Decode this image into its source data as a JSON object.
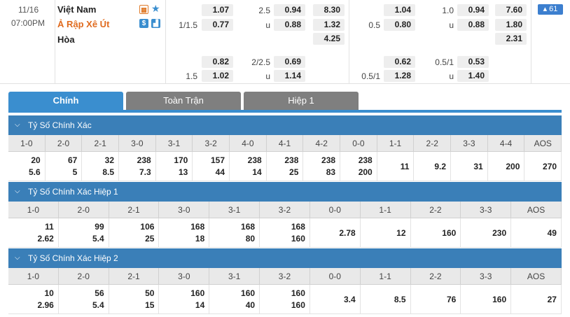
{
  "match": {
    "date": "11/16",
    "time": "07:00PM",
    "home": "Việt Nam",
    "away": "Ả Rập Xê Út",
    "draw": "Hòa"
  },
  "more_badge": "61",
  "odds_full": {
    "r1": {
      "h1": "1.07",
      "hcap_label": "2.5",
      "ou1": "0.94",
      "x1": "8.30"
    },
    "r2": {
      "hcap": "1/1.5",
      "h2": "0.77",
      "u": "u",
      "ou2": "0.88",
      "x2": "1.32"
    },
    "r3": {
      "x3": "4.25"
    },
    "r4": {
      "h4": "0.82",
      "ou_label": "2/2.5",
      "ou4": "0.69"
    },
    "r5": {
      "hcap": "1.5",
      "h5": "1.02",
      "u": "u",
      "ou5": "1.14"
    }
  },
  "odds_half": {
    "r1": {
      "h1": "1.04",
      "hcap_label": "1.0",
      "ou1": "0.94",
      "x1": "7.60"
    },
    "r2": {
      "hcap": "0.5",
      "h2": "0.80",
      "u": "u",
      "ou2": "0.88",
      "x2": "1.80"
    },
    "r3": {
      "x3": "2.31"
    },
    "r4": {
      "h4": "0.62",
      "ou_label": "0.5/1",
      "ou4": "0.53"
    },
    "r5": {
      "hcap": "0.5/1",
      "h5": "1.28",
      "u": "u",
      "ou5": "1.40"
    }
  },
  "tabs": [
    "Chính",
    "Toàn Trận",
    "Hiệp 1"
  ],
  "sections": [
    {
      "title": "Tỷ Số Chính Xác",
      "headers": [
        "1-0",
        "2-0",
        "2-1",
        "3-0",
        "3-1",
        "3-2",
        "4-0",
        "4-1",
        "4-2",
        "0-0",
        "1-1",
        "2-2",
        "3-3",
        "4-4",
        "AOS"
      ],
      "top": [
        "20",
        "67",
        "32",
        "238",
        "170",
        "157",
        "238",
        "238",
        "238",
        "238",
        "",
        "",
        "",
        "",
        ""
      ],
      "bottom": [
        "5.6",
        "5",
        "8.5",
        "7.3",
        "13",
        "44",
        "14",
        "25",
        "83",
        "200",
        "",
        "",
        "",
        "",
        ""
      ],
      "single": [
        "",
        "",
        "",
        "",
        "",
        "",
        "",
        "",
        "",
        "",
        "11",
        "9.2",
        "31",
        "200",
        "270"
      ]
    },
    {
      "title": "Tỷ Số Chính Xác Hiệp 1",
      "headers": [
        "1-0",
        "2-0",
        "2-1",
        "3-0",
        "3-1",
        "3-2",
        "0-0",
        "1-1",
        "2-2",
        "3-3",
        "AOS"
      ],
      "top": [
        "11",
        "99",
        "106",
        "168",
        "168",
        "168",
        "",
        "",
        "",
        "",
        ""
      ],
      "bottom": [
        "2.62",
        "5.4",
        "25",
        "18",
        "80",
        "160",
        "",
        "",
        "",
        "",
        ""
      ],
      "single": [
        "",
        "",
        "",
        "",
        "",
        "",
        "2.78",
        "12",
        "160",
        "230",
        "49"
      ]
    },
    {
      "title": "Tỷ Số Chính Xác Hiệp 2",
      "headers": [
        "1-0",
        "2-0",
        "2-1",
        "3-0",
        "3-1",
        "3-2",
        "0-0",
        "1-1",
        "2-2",
        "3-3",
        "AOS"
      ],
      "top": [
        "10",
        "56",
        "50",
        "160",
        "160",
        "160",
        "",
        "",
        "",
        "",
        ""
      ],
      "bottom": [
        "2.96",
        "5.4",
        "15",
        "14",
        "40",
        "160",
        "",
        "",
        "",
        "",
        ""
      ],
      "single": [
        "",
        "",
        "",
        "",
        "",
        "",
        "3.4",
        "8.5",
        "76",
        "160",
        "27"
      ]
    }
  ],
  "colors": {
    "accent": "#3a8ecf",
    "section_header": "#3a7fb8",
    "away_team": "#e06b1f"
  }
}
